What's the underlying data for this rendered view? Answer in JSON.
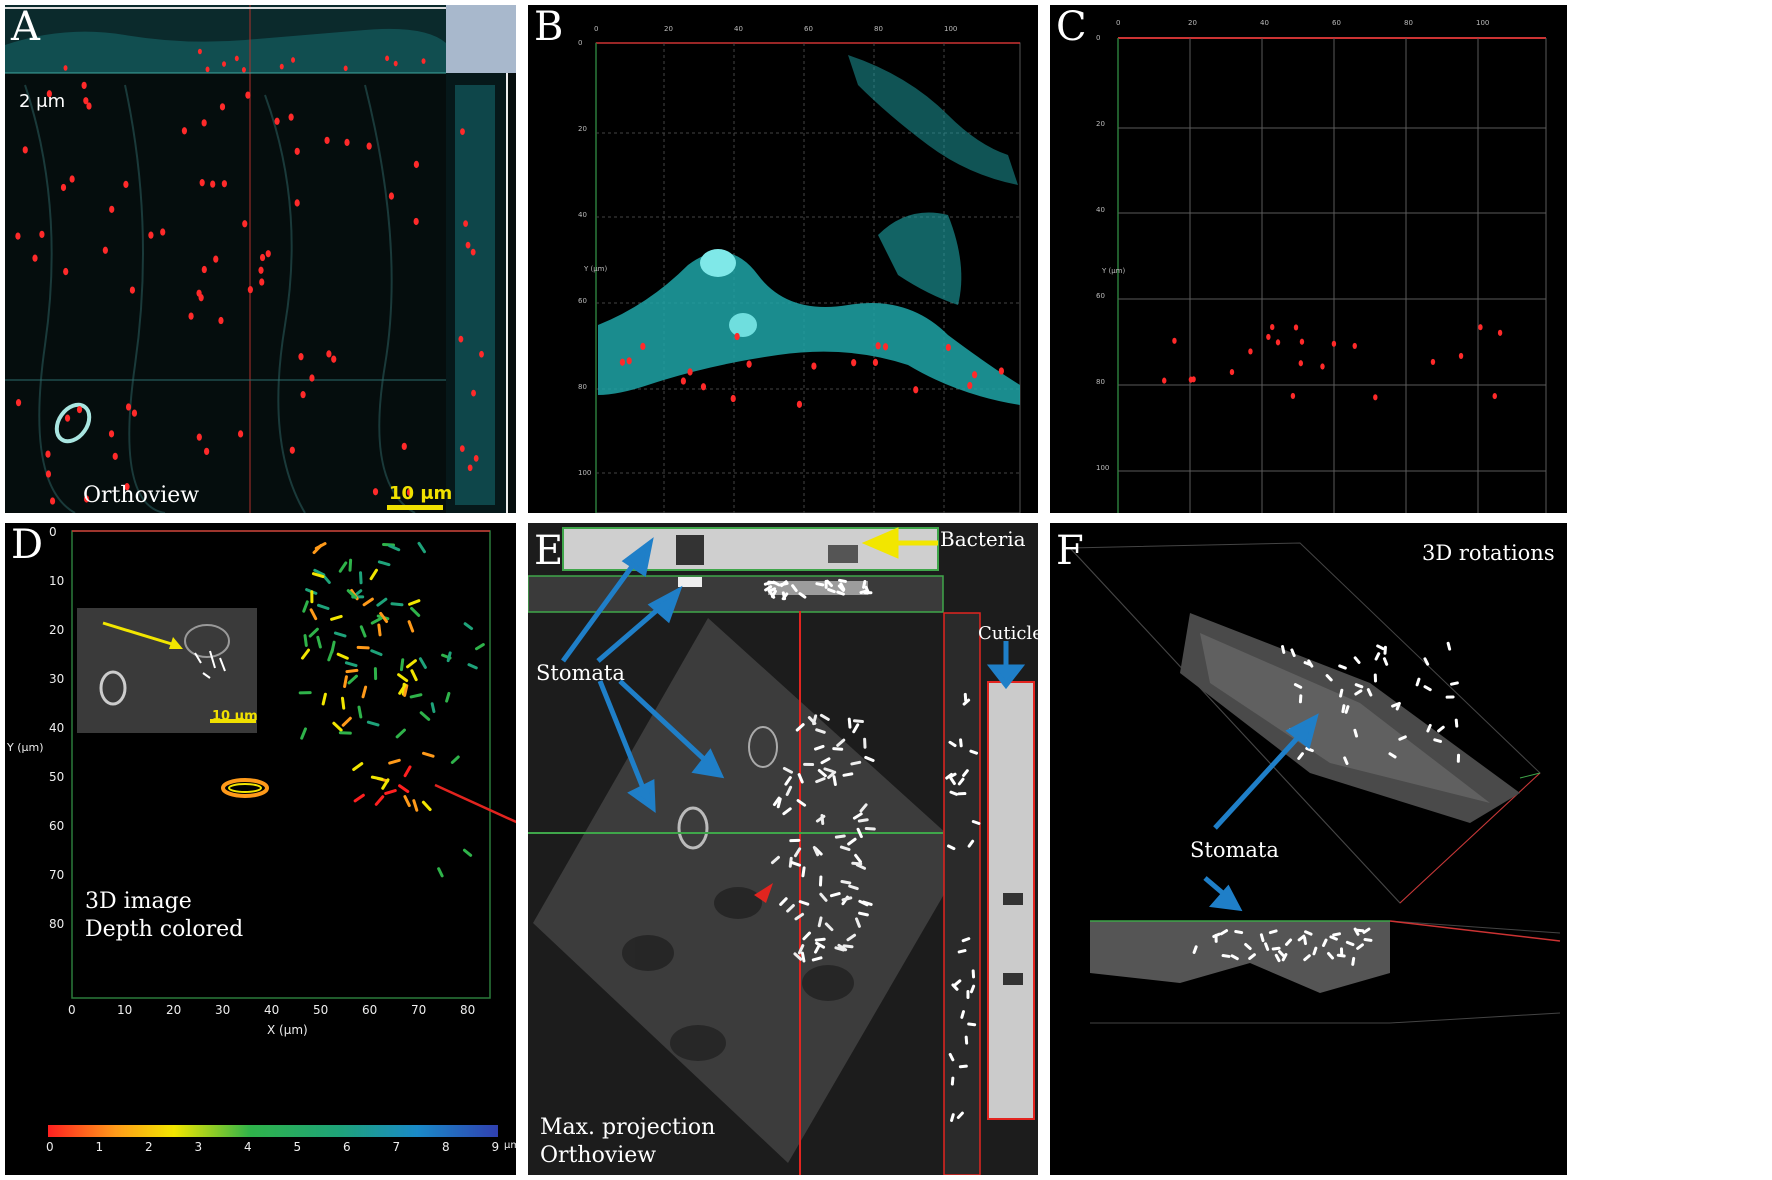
{
  "panels": {
    "a": {
      "label": "A",
      "scale_text": "2 μm",
      "caption": "Orthoview",
      "scalebar": "10 μm"
    },
    "b": {
      "label": "B",
      "x_ticks": [
        "0",
        "20",
        "40",
        "60",
        "80",
        "100"
      ],
      "y_ticks": [
        "0",
        "20",
        "40",
        "60",
        "80",
        "100"
      ],
      "y_axis": "Y (μm)"
    },
    "c": {
      "label": "C",
      "x_ticks": [
        "0",
        "20",
        "40",
        "60",
        "80",
        "100"
      ],
      "y_ticks": [
        "0",
        "20",
        "40",
        "60",
        "80",
        "100"
      ],
      "y_axis": "Y (μm)"
    },
    "d": {
      "label": "D",
      "caption_line1": "3D image",
      "caption_line2": "Depth colored",
      "x_ticks": [
        "0",
        "10",
        "20",
        "30",
        "40",
        "50",
        "60",
        "70",
        "80"
      ],
      "y_ticks": [
        "0",
        "10",
        "20",
        "30",
        "40",
        "50",
        "60",
        "70",
        "80"
      ],
      "x_axis": "X (μm)",
      "y_axis": "Y (μm)",
      "colorbar_ticks": [
        "0",
        "1",
        "2",
        "3",
        "4",
        "5",
        "6",
        "7",
        "8",
        "9"
      ],
      "colorbar_unit": "μm",
      "inset_scalebar": "10 μm"
    },
    "e": {
      "label": "E",
      "bacteria": "Bacteria",
      "stomata": "Stomata",
      "cuticle": "Cuticle",
      "caption_line1": "Max. projection",
      "caption_line2": "Orthoview"
    },
    "f": {
      "label": "F",
      "title": "3D rotations",
      "stomata": "Stomata"
    }
  },
  "colors": {
    "cyan": "#2bb7b9",
    "bacteria_red": "#ff2a2a",
    "arrow_blue": "#1f7fc8",
    "arrow_yellow": "#f2e600",
    "arrow_red": "#e2241f",
    "frame_red": "#d8322f",
    "frame_green": "#3fa64a"
  }
}
